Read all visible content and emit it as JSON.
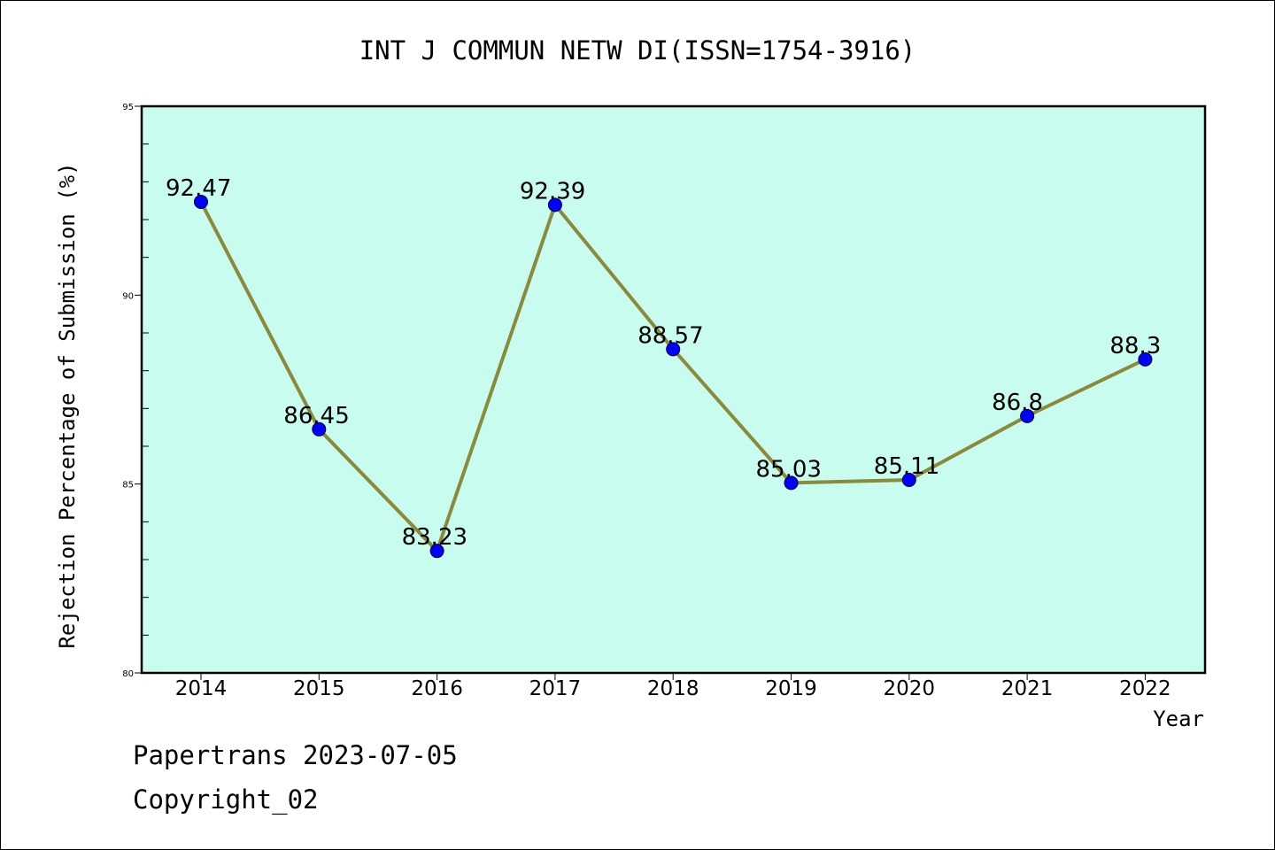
{
  "chart_data": {
    "type": "line",
    "title": "INT J COMMUN NETW DI(ISSN=1754-3916)",
    "xlabel": "Year",
    "ylabel": "Rejection Percentage of Submission (%)",
    "categories": [
      "2014",
      "2015",
      "2016",
      "2017",
      "2018",
      "2019",
      "2020",
      "2021",
      "2022"
    ],
    "series": [
      {
        "values": [
          92.47,
          86.45,
          83.23,
          92.39,
          88.57,
          85.03,
          85.11,
          86.8,
          88.3
        ]
      }
    ],
    "data_labels": [
      "92.47",
      "86.45",
      "83.23",
      "92.39",
      "88.57",
      "85.03",
      "85.11",
      "86.8",
      "88.3"
    ],
    "ylim": [
      80,
      95
    ],
    "yticks": [
      "80",
      "85",
      "90",
      "95"
    ],
    "plot_background": "#c8fcee",
    "line_color": "#8b8a3a",
    "marker_color": "#0000ff",
    "grid": false
  },
  "footer": {
    "line1": "Papertrans 2023-07-05",
    "line2": "Copyright_02"
  }
}
